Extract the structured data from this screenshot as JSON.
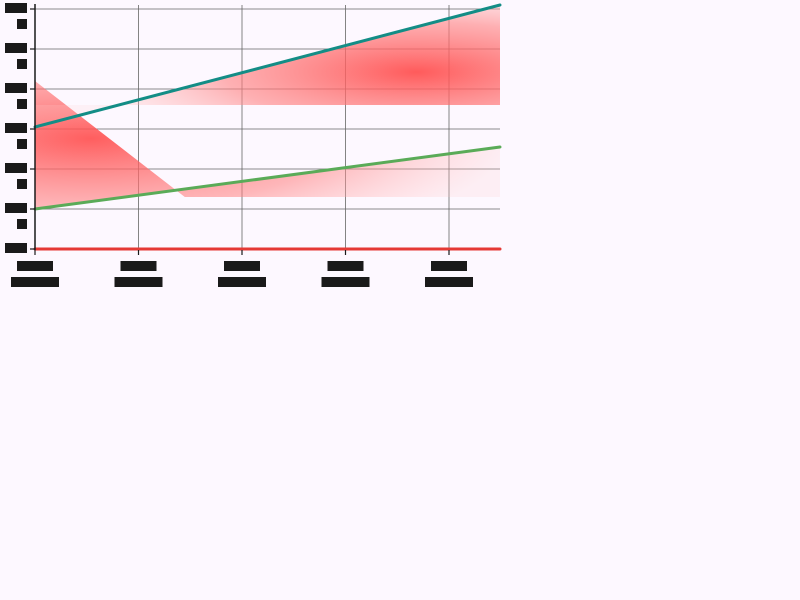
{
  "chart_data": {
    "type": "line",
    "x_tick_count": 5,
    "y_tick_count": 7,
    "xlim": [
      0,
      4.5
    ],
    "ylim": [
      0,
      6
    ],
    "grid": true,
    "series": [
      {
        "values": [
          {
            "x": 0,
            "y": 3.05
          },
          {
            "x": 4.5,
            "y": 6.1
          }
        ],
        "color": "#138d86"
      },
      {
        "values": [
          {
            "x": 0,
            "y": 1.0
          },
          {
            "x": 4.5,
            "y": 2.55
          }
        ],
        "color": "#5aab58"
      },
      {
        "values": [
          {
            "x": 0,
            "y": 0.0
          },
          {
            "x": 4.5,
            "y": 0.0
          }
        ],
        "color": "#e53935"
      }
    ],
    "shaded_regions": [
      {
        "color": "#ff4d4d",
        "points": [
          [
            0,
            4.2
          ],
          [
            1.45,
            1.3
          ],
          [
            4.5,
            1.3
          ],
          [
            4.5,
            2.55
          ],
          [
            0,
            1.0
          ]
        ]
      },
      {
        "color": "#ff4d4d",
        "points": [
          [
            0,
            3.05
          ],
          [
            4.5,
            6.1
          ],
          [
            4.5,
            3.6
          ],
          [
            0,
            3.6
          ]
        ]
      }
    ],
    "colors": {
      "axis": "#1a1a1a",
      "grid": "#666666",
      "tick_box": "#1a1a1a",
      "background": "#fdf8ff"
    }
  }
}
